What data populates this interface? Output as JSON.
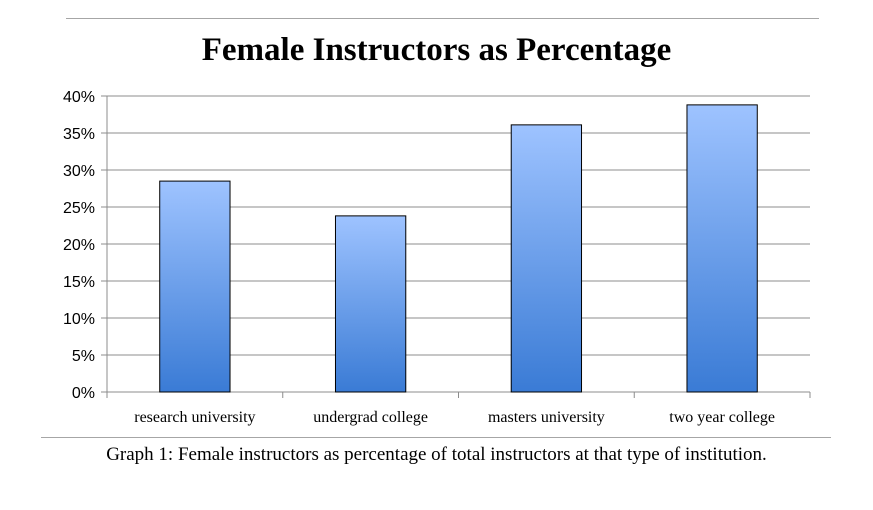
{
  "chart_data": {
    "type": "bar",
    "title": "Female Instructors as Percentage",
    "categories": [
      "research university",
      "undergrad college",
      "masters university",
      "two year college"
    ],
    "values": [
      0.285,
      0.238,
      0.361,
      0.388
    ],
    "ylim": [
      0,
      0.4
    ],
    "yticks": [
      "0%",
      "5%",
      "10%",
      "15%",
      "20%",
      "25%",
      "30%",
      "35%",
      "40%"
    ],
    "xlabel": "",
    "ylabel": "",
    "grid": true,
    "legend": "none",
    "bar_color_top": "#9ec3ff",
    "bar_color_bottom": "#3a7bd5"
  },
  "caption": "Graph 1: Female instructors as percentage of total instructors at that type of institution."
}
